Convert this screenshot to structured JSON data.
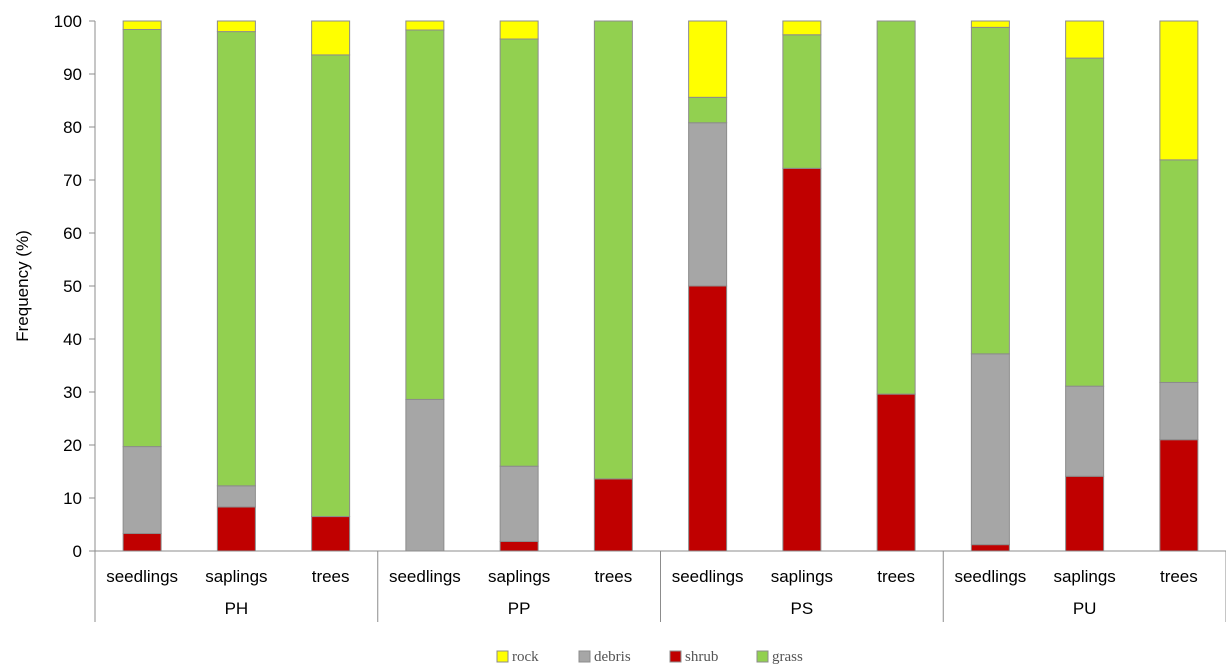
{
  "chart_data": {
    "type": "bar",
    "stacked": true,
    "ylabel": "Frequency  (%)",
    "ylim": [
      0,
      100
    ],
    "yticks": [
      0,
      10,
      20,
      30,
      40,
      50,
      60,
      70,
      80,
      90,
      100
    ],
    "grid": false,
    "legend_position": "bottom",
    "groups": [
      {
        "name": "PH",
        "categories": [
          "seedlings",
          "saplings",
          "trees"
        ]
      },
      {
        "name": "PP",
        "categories": [
          "seedlings",
          "saplings",
          "trees"
        ]
      },
      {
        "name": "PS",
        "categories": [
          "seedlings",
          "saplings",
          "trees"
        ]
      },
      {
        "name": "PU",
        "categories": [
          "seedlings",
          "saplings",
          "trees"
        ]
      }
    ],
    "series": [
      {
        "name": "shrub",
        "color": "#c00000",
        "values": [
          3.3,
          8.3,
          6.5,
          0.0,
          1.8,
          13.6,
          50.0,
          72.2,
          29.6,
          1.2,
          14.1,
          21.0
        ]
      },
      {
        "name": "debris",
        "color": "#a6a6a6",
        "values": [
          16.4,
          4.0,
          0.0,
          28.6,
          14.2,
          0.0,
          30.8,
          0.0,
          0.0,
          36.0,
          17.0,
          10.8
        ]
      },
      {
        "name": "grass",
        "color": "#92d050",
        "values": [
          78.7,
          85.7,
          87.1,
          69.7,
          80.6,
          86.4,
          4.8,
          25.2,
          70.4,
          61.6,
          61.9,
          42.0
        ]
      },
      {
        "name": "rock",
        "color": "#ffff00",
        "values": [
          1.6,
          2.0,
          6.4,
          1.7,
          3.4,
          0.0,
          14.4,
          2.6,
          0.0,
          1.2,
          7.0,
          26.2
        ]
      }
    ],
    "legend_order": [
      "rock",
      "debris",
      "shrub",
      "grass"
    ]
  }
}
